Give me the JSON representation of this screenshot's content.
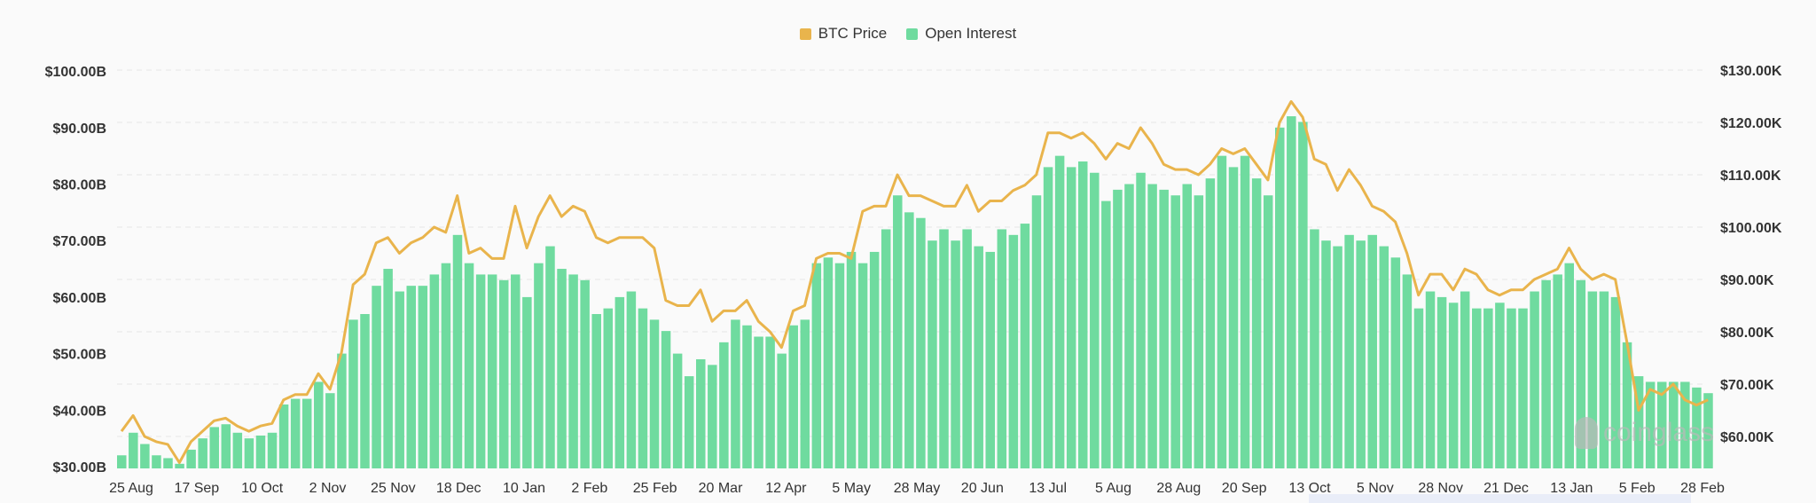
{
  "chart_data": {
    "type": "bar+line",
    "legend": [
      {
        "name": "BTC Price",
        "color": "#e9b44c"
      },
      {
        "name": "Open Interest",
        "color": "#6fdb9f"
      }
    ],
    "legend_position": "top-center",
    "grid": true,
    "left_axis": {
      "ticks": [
        "$30.00B",
        "$40.00B",
        "$50.00B",
        "$60.00B",
        "$70.00B",
        "$80.00B",
        "$90.00B",
        "$100.00B"
      ],
      "range": [
        30,
        100
      ],
      "unit": "B"
    },
    "right_axis": {
      "ticks": [
        "$60.00K",
        "$70.00K",
        "$80.00K",
        "$90.00K",
        "$100.00K",
        "$110.00K",
        "$120.00K",
        "$130.00K"
      ],
      "range": [
        53.9,
        130
      ],
      "unit": "K"
    },
    "x_ticks": [
      "25 Aug",
      "17 Sep",
      "10 Oct",
      "2 Nov",
      "25 Nov",
      "18 Dec",
      "10 Jan",
      "2 Feb",
      "25 Feb",
      "20 Mar",
      "12 Apr",
      "5 May",
      "28 May",
      "20 Jun",
      "13 Jul",
      "5 Aug",
      "28 Aug",
      "20 Sep",
      "13 Oct",
      "5 Nov",
      "28 Nov",
      "21 Dec",
      "13 Jan",
      "5 Feb",
      "28 Feb"
    ],
    "series": [
      {
        "name": "Open Interest",
        "axis": "left",
        "type": "bar",
        "values": [
          32,
          36,
          34,
          32,
          31.5,
          30.5,
          33,
          35,
          37,
          37.5,
          36,
          35,
          35.5,
          36,
          41,
          42,
          42,
          45,
          43,
          50,
          56,
          57,
          62,
          65,
          61,
          62,
          62,
          64,
          66,
          71,
          66,
          64,
          64,
          63,
          64,
          60,
          66,
          69,
          65,
          64,
          63,
          57,
          58,
          60,
          61,
          58,
          56,
          54,
          50,
          46,
          49,
          48,
          52,
          56,
          55,
          53,
          53,
          50,
          55,
          56,
          66,
          67,
          66,
          68,
          66,
          68,
          72,
          78,
          75,
          74,
          70,
          72,
          70,
          72,
          69,
          68,
          72,
          71,
          73,
          78,
          83,
          85,
          83,
          84,
          82,
          77,
          79,
          80,
          82,
          80,
          79,
          78,
          80,
          78,
          81,
          85,
          83,
          85,
          81,
          78,
          90,
          92,
          91,
          72,
          70,
          69,
          71,
          70,
          71,
          69,
          67,
          64,
          58,
          61,
          60,
          59,
          61,
          58,
          58,
          59,
          58,
          58,
          61,
          63,
          64,
          66,
          63,
          61,
          61,
          60,
          52,
          46,
          45,
          45,
          45,
          45,
          44,
          43
        ]
      },
      {
        "name": "BTC Price",
        "axis": "right",
        "type": "line",
        "values": [
          61,
          64,
          60,
          59,
          58.5,
          55,
          59,
          61,
          63,
          63.5,
          62,
          61,
          62,
          62.5,
          67,
          68,
          68,
          72,
          69,
          76,
          89,
          91,
          97,
          98,
          95,
          97,
          98,
          100,
          99,
          106,
          95,
          96,
          94,
          94,
          104,
          96,
          102,
          106,
          102,
          104,
          103,
          98,
          97,
          98,
          98,
          98,
          96,
          86,
          85,
          85,
          88,
          82,
          84,
          84,
          86,
          82,
          80,
          77,
          84,
          85,
          94,
          95,
          95,
          94,
          103,
          104,
          104,
          110,
          106,
          106,
          105,
          104,
          104,
          108,
          103,
          105,
          105,
          107,
          108,
          110,
          118,
          118,
          117,
          118,
          116,
          113,
          116,
          115,
          119,
          116,
          112,
          111,
          111,
          110,
          112,
          115,
          114,
          115,
          112,
          109,
          120,
          124,
          121,
          113,
          112,
          107,
          111,
          108,
          104,
          103,
          101,
          95,
          87,
          91,
          91,
          88,
          92,
          91,
          88,
          87,
          88,
          88,
          90,
          91,
          92,
          96,
          92,
          90,
          91,
          90,
          78,
          65,
          69,
          68,
          70,
          67,
          66,
          67
        ]
      }
    ],
    "watermark": "coinglass"
  }
}
